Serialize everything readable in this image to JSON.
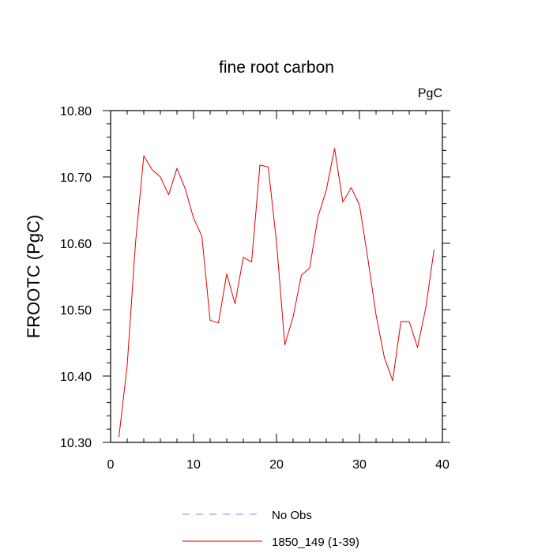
{
  "chart_data": {
    "type": "line",
    "title": "fine root carbon",
    "units_label": "PgC",
    "ylabel": "FROOTC  (PgC)",
    "xlabel": "",
    "xlim": [
      0,
      40
    ],
    "ylim": [
      10.3,
      10.8
    ],
    "x_ticks": [
      0,
      10,
      20,
      30,
      40
    ],
    "y_ticks": [
      10.3,
      10.4,
      10.5,
      10.6,
      10.7,
      10.8
    ],
    "x_tick_labels": [
      "0",
      "10",
      "20",
      "30",
      "40"
    ],
    "y_tick_labels": [
      "10.30",
      "10.40",
      "10.50",
      "10.60",
      "10.70",
      "10.80"
    ],
    "grid": false,
    "legend_placement": "bottom",
    "legend": [
      {
        "label": "No Obs",
        "color": "#8080ff",
        "style": "dashed"
      },
      {
        "label": "1850_149 (1-39)",
        "color": "#e00000",
        "style": "solid"
      }
    ],
    "series": [
      {
        "name": "1850_149 (1-39)",
        "color": "#e00000",
        "x": [
          1,
          2,
          3,
          4,
          5,
          6,
          7,
          8,
          9,
          10,
          11,
          12,
          13,
          14,
          15,
          16,
          17,
          18,
          19,
          20,
          21,
          22,
          23,
          24,
          25,
          26,
          27,
          28,
          29,
          30,
          31,
          32,
          33,
          34,
          35,
          36,
          37,
          38,
          39
        ],
        "values": [
          10.308,
          10.416,
          10.6,
          10.732,
          10.711,
          10.7,
          10.673,
          10.713,
          10.682,
          10.638,
          10.611,
          10.484,
          10.48,
          10.554,
          10.509,
          10.579,
          10.572,
          10.718,
          10.715,
          10.602,
          10.447,
          10.489,
          10.552,
          10.563,
          10.64,
          10.68,
          10.743,
          10.662,
          10.684,
          10.658,
          10.578,
          10.492,
          10.428,
          10.393,
          10.482,
          10.482,
          10.443,
          10.503,
          10.591
        ]
      }
    ]
  }
}
